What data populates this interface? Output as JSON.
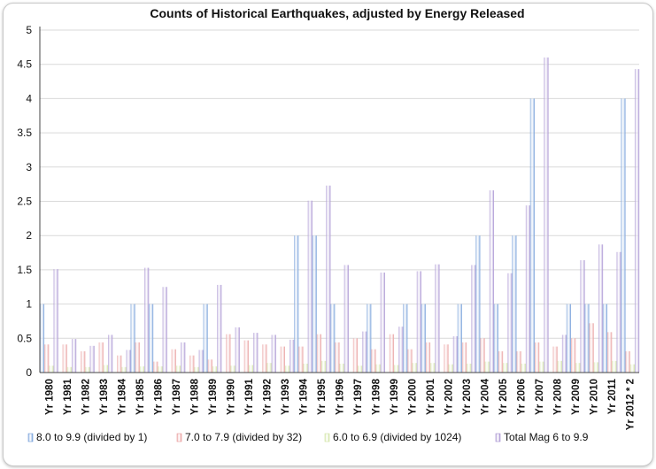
{
  "chart_data": {
    "type": "bar",
    "title": "Counts of Historical Earthquakes, adjusted by Energy Released",
    "xlabel": "",
    "ylabel": "",
    "ylim": [
      0,
      5
    ],
    "yticks": [
      "0",
      "0.5",
      "1",
      "1.5",
      "2",
      "2.5",
      "3",
      "3.5",
      "4",
      "4.5",
      "5"
    ],
    "grid": true,
    "legend_position": "bottom",
    "categories": [
      "Yr 1980",
      "Yr 1981",
      "Yr 1982",
      "Yr 1983",
      "Yr 1984",
      "Yr 1985",
      "Yr 1986",
      "Yr 1987",
      "Yr 1988",
      "Yr 1989",
      "Yr 1990",
      "Yr 1991",
      "Yr 1992",
      "Yr 1993",
      "Yr 1994",
      "Yr 1995",
      "Yr 1996",
      "Yr 1997",
      "Yr 1998",
      "Yr 1999",
      "Yr 2000",
      "Yr 2001",
      "Yr 2002",
      "Yr 2003",
      "Yr 2004",
      "Yr 2005",
      "Yr 2006",
      "Yr 2007",
      "Yr 2008",
      "Yr 2009",
      "Yr 2010",
      "Yr 2011",
      "Yr 2012 * 2"
    ],
    "series": [
      {
        "name": "8.0 to 9.9 (divided by 1)",
        "color": "#6f9bd8",
        "values": [
          1,
          0,
          0,
          0,
          0,
          1,
          1,
          0,
          0,
          1,
          0,
          0,
          0,
          0,
          2,
          2,
          1,
          0,
          1,
          0,
          1,
          1,
          0,
          1,
          2,
          1,
          2,
          4,
          0,
          1,
          1,
          1,
          4
        ]
      },
      {
        "name": "7.0 to 7.9 (divided by 32)",
        "color": "#e89a9a",
        "values": [
          0.41,
          0.41,
          0.31,
          0.44,
          0.25,
          0.44,
          0.16,
          0.34,
          0.25,
          0.19,
          0.56,
          0.47,
          0.41,
          0.38,
          0.38,
          0.56,
          0.44,
          0.5,
          0.34,
          0.56,
          0.34,
          0.44,
          0.41,
          0.44,
          0.5,
          0.31,
          0.31,
          0.44,
          0.38,
          0.5,
          0.72,
          0.59,
          0.31
        ]
      },
      {
        "name": "6.0 to 6.9 (divided by 1024)",
        "color": "#cfe3a0",
        "values": [
          0.1,
          0.08,
          0.08,
          0.11,
          0.08,
          0.09,
          0.09,
          0.1,
          0.08,
          0.09,
          0.1,
          0.11,
          0.14,
          0.1,
          0.13,
          0.17,
          0.13,
          0.1,
          0.12,
          0.11,
          0.14,
          0.14,
          0.12,
          0.13,
          0.16,
          0.14,
          0.13,
          0.16,
          0.17,
          0.14,
          0.15,
          0.17,
          0.12
        ]
      },
      {
        "name": "Total Mag 6 to 9.9",
        "color": "#a58fd0",
        "values": [
          1.51,
          0.49,
          0.39,
          0.55,
          0.33,
          1.53,
          1.25,
          0.44,
          0.33,
          1.28,
          0.66,
          0.58,
          0.55,
          0.48,
          2.51,
          2.73,
          1.57,
          0.6,
          1.46,
          0.67,
          1.48,
          1.58,
          0.53,
          1.57,
          2.66,
          1.45,
          2.44,
          4.6,
          0.55,
          1.64,
          1.87,
          1.76,
          4.43
        ]
      }
    ]
  }
}
